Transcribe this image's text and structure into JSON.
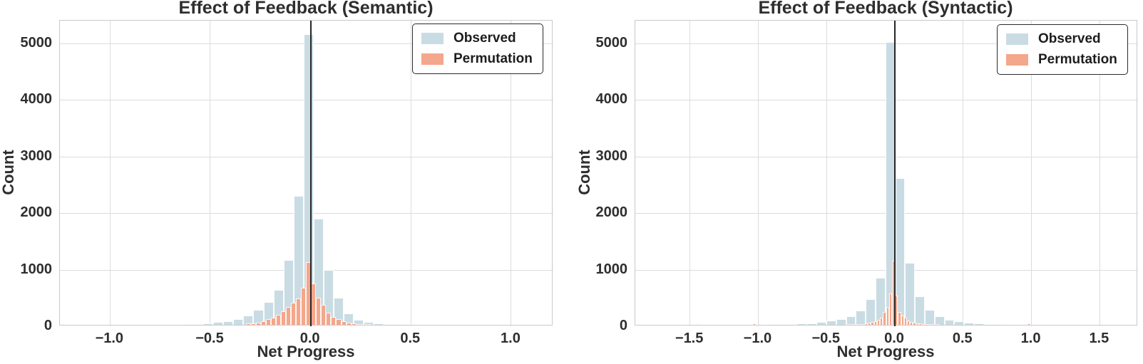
{
  "colors": {
    "observed": "#cadce3",
    "permutation": "#f4a78b",
    "vline": "#262626",
    "grid": "#dcdcdc",
    "spine": "#c9c9c9",
    "text": "#2e2e2e"
  },
  "chart_data": [
    {
      "type": "bar",
      "subtype": "overlaid-histograms",
      "title": "Effect of Feedback (Semantic)",
      "xlabel": "Net Progress",
      "ylabel": "Count",
      "xlim": [
        -1.25,
        1.21
      ],
      "ylim": [
        0,
        5400
      ],
      "xticks": [
        -1.0,
        -0.5,
        0.0,
        0.5,
        1.0
      ],
      "xtick_labels": [
        "−1.0",
        "−0.5",
        "0.0",
        "0.5",
        "1.0"
      ],
      "yticks": [
        0,
        1000,
        2000,
        3000,
        4000,
        5000
      ],
      "ytick_labels": [
        "0",
        "1000",
        "2000",
        "3000",
        "4000",
        "5000"
      ],
      "grid": true,
      "legend_position": "upper right",
      "vline_x": 0,
      "series": [
        {
          "name": "Observed",
          "color": "observed",
          "bin_width": 0.05,
          "centers": [
            -0.61,
            -0.56,
            -0.51,
            -0.46,
            -0.41,
            -0.36,
            -0.31,
            -0.26,
            -0.21,
            -0.16,
            -0.11,
            -0.06,
            -0.01,
            0.04,
            0.09,
            0.14,
            0.19,
            0.24,
            0.29,
            0.34,
            0.39,
            0.44,
            0.49
          ],
          "counts": [
            8,
            18,
            30,
            45,
            65,
            100,
            160,
            270,
            400,
            620,
            1150,
            2280,
            5140,
            1870,
            970,
            475,
            205,
            90,
            45,
            25,
            15,
            12,
            8
          ]
        },
        {
          "name": "Permutation",
          "color": "permutation",
          "bin_width": 0.025,
          "centers": [
            -0.31,
            -0.285,
            -0.26,
            -0.235,
            -0.21,
            -0.185,
            -0.16,
            -0.135,
            -0.11,
            -0.085,
            -0.06,
            -0.035,
            -0.01,
            0.015,
            0.04,
            0.065,
            0.09,
            0.115,
            0.14,
            0.165,
            0.19,
            0.215,
            0.24,
            0.265,
            0.29
          ],
          "counts": [
            20,
            28,
            40,
            60,
            95,
            130,
            175,
            240,
            310,
            390,
            470,
            650,
            1105,
            730,
            480,
            350,
            220,
            140,
            95,
            60,
            42,
            30,
            18,
            12,
            8
          ]
        }
      ]
    },
    {
      "type": "bar",
      "subtype": "overlaid-histograms",
      "title": "Effect of Feedback (Syntactic)",
      "xlabel": "Net Progress",
      "ylabel": "Count",
      "xlim": [
        -1.9,
        1.78
      ],
      "ylim": [
        0,
        5400
      ],
      "xticks": [
        -1.5,
        -1.0,
        -0.5,
        0.0,
        0.5,
        1.0,
        1.5
      ],
      "xtick_labels": [
        "−1.5",
        "−1.0",
        "−0.5",
        "0.0",
        "0.5",
        "1.0",
        "1.5"
      ],
      "yticks": [
        0,
        1000,
        2000,
        3000,
        4000,
        5000
      ],
      "ytick_labels": [
        "0",
        "1000",
        "2000",
        "3000",
        "4000",
        "5000"
      ],
      "grid": true,
      "legend_position": "upper right",
      "vline_x": 0,
      "series": [
        {
          "name": "Observed",
          "color": "observed",
          "bin_width": 0.072,
          "centers": [
            -0.897,
            -0.825,
            -0.753,
            -0.681,
            -0.609,
            -0.537,
            -0.465,
            -0.393,
            -0.321,
            -0.249,
            -0.177,
            -0.105,
            -0.033,
            0.039,
            0.111,
            0.183,
            0.255,
            0.327,
            0.399,
            0.471,
            0.543,
            0.615,
            0.687,
            0.759
          ],
          "counts": [
            8,
            12,
            15,
            20,
            28,
            45,
            70,
            95,
            145,
            250,
            455,
            830,
            5000,
            2590,
            1090,
            505,
            260,
            145,
            85,
            58,
            42,
            30,
            18,
            10
          ]
        },
        {
          "name": "Permutation",
          "color": "permutation",
          "bin_width": 0.022,
          "centers": [
            -1.44,
            -1.03,
            -0.34,
            -0.318,
            -0.296,
            -0.274,
            -0.252,
            -0.23,
            -0.208,
            -0.186,
            -0.164,
            -0.142,
            -0.12,
            -0.098,
            -0.076,
            -0.054,
            -0.032,
            -0.01,
            0.012,
            0.034,
            0.056,
            0.078,
            0.1,
            0.122,
            0.144,
            0.166,
            0.188,
            0.21,
            0.232,
            0.254,
            0.276,
            0.298,
            0.32,
            0.98
          ],
          "counts": [
            12,
            30,
            6,
            8,
            10,
            12,
            15,
            18,
            25,
            32,
            45,
            60,
            85,
            130,
            230,
            310,
            550,
            1130,
            520,
            230,
            160,
            120,
            80,
            55,
            38,
            28,
            20,
            14,
            10,
            8,
            6,
            5,
            4,
            20
          ]
        }
      ]
    }
  ]
}
